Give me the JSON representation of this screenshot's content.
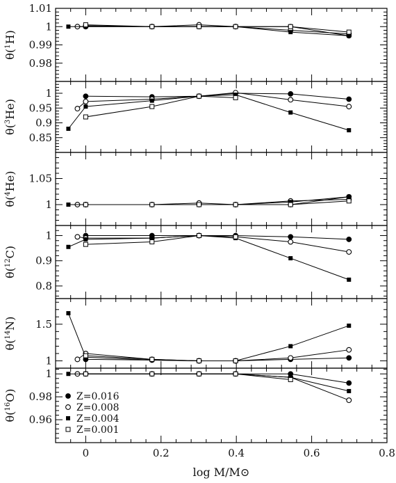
{
  "figure": {
    "xlabel": "log M/M⊙"
  },
  "chart_data": {
    "type": "line",
    "xlabel": "log M/M⊙",
    "xlim": [
      -0.08,
      0.8
    ],
    "xticks": [
      "0",
      "0.2",
      "0.4",
      "0.6",
      "0.8"
    ],
    "legend_placement": "bottom-left of last panel",
    "series_styles": [
      {
        "name": "Z=0.016",
        "marker": "filled-circle"
      },
      {
        "name": "Z=0.008",
        "marker": "open-circle"
      },
      {
        "name": "Z=0.004",
        "marker": "filled-square"
      },
      {
        "name": "Z=0.001",
        "marker": "open-square"
      }
    ],
    "panels": [
      {
        "ylabel_prefix": "θ(",
        "ylabel_sup": "1",
        "ylabel_elem": "H)",
        "ylim": [
          0.97,
          1.01
        ],
        "yticks": [
          0.98,
          0.99,
          1.0,
          1.01
        ],
        "yticklabels": [
          "0.98",
          "0.99",
          "1",
          "1.01"
        ],
        "series": [
          {
            "name": "Z=0.016",
            "x": [
              0,
              0.176,
              0.301,
              0.398,
              0.544,
              0.699
            ],
            "y": [
              1.0005,
              1.0,
              1.0,
              1.0,
              1.0,
              0.995
            ]
          },
          {
            "name": "Z=0.008",
            "x": [
              -0.022,
              0,
              0.176,
              0.301,
              0.398,
              0.544,
              0.699
            ],
            "y": [
              1.0,
              1.0,
              1.0,
              1.001,
              1.0,
              0.998,
              0.996
            ]
          },
          {
            "name": "Z=0.004",
            "x": [
              -0.046,
              0,
              0.176,
              0.301,
              0.398,
              0.544,
              0.699
            ],
            "y": [
              1.0,
              1.0,
              1.0,
              1.0,
              1.0,
              0.997,
              0.995
            ]
          },
          {
            "name": "Z=0.001",
            "x": [
              0,
              0.176,
              0.301,
              0.398,
              0.544,
              0.699
            ],
            "y": [
              1.001,
              1.0,
              1.0,
              1.0,
              1.0,
              0.997
            ]
          }
        ]
      },
      {
        "ylabel_prefix": "θ(",
        "ylabel_sup": "3",
        "ylabel_elem": "He)",
        "ylim": [
          0.8,
          1.04
        ],
        "yticks": [
          0.85,
          0.9,
          0.95,
          1.0
        ],
        "yticklabels": [
          "0.85",
          "0.9",
          "0.95",
          "1"
        ],
        "series": [
          {
            "name": "Z=0.016",
            "x": [
              0,
              0.176,
              0.301,
              0.398,
              0.544,
              0.699
            ],
            "y": [
              0.99,
              0.988,
              0.99,
              1.0,
              0.998,
              0.98
            ]
          },
          {
            "name": "Z=0.008",
            "x": [
              -0.022,
              0,
              0.176,
              0.301,
              0.398,
              0.544,
              0.699
            ],
            "y": [
              0.948,
              0.972,
              0.98,
              0.99,
              1.002,
              0.978,
              0.955
            ]
          },
          {
            "name": "Z=0.004",
            "x": [
              -0.046,
              0,
              0.176,
              0.301,
              0.398,
              0.544,
              0.699
            ],
            "y": [
              0.88,
              0.955,
              0.975,
              0.99,
              0.995,
              0.935,
              0.875
            ]
          },
          {
            "name": "Z=0.001",
            "x": [
              0,
              0.176,
              0.301,
              0.398
            ],
            "y": [
              0.92,
              0.955,
              0.99,
              0.985
            ]
          }
        ]
      },
      {
        "ylabel_prefix": "θ(",
        "ylabel_sup": "4",
        "ylabel_elem": "He)",
        "ylim": [
          0.96,
          1.1
        ],
        "yticks": [
          1.0,
          1.05
        ],
        "yticklabels": [
          "1",
          "1.05"
        ],
        "series": [
          {
            "name": "Z=0.016",
            "x": [
              0,
              0.176,
              0.301,
              0.398,
              0.544,
              0.699
            ],
            "y": [
              1.0,
              1.0,
              1.0,
              1.0,
              1.0,
              1.015
            ]
          },
          {
            "name": "Z=0.008",
            "x": [
              -0.022,
              0,
              0.176,
              0.301,
              0.398,
              0.544,
              0.699
            ],
            "y": [
              1.0,
              1.0,
              1.0,
              1.003,
              1.0,
              1.007,
              1.01
            ]
          },
          {
            "name": "Z=0.004",
            "x": [
              -0.046,
              0,
              0.176,
              0.301,
              0.398,
              0.544,
              0.699
            ],
            "y": [
              1.0,
              1.0,
              1.0,
              1.0,
              1.0,
              1.005,
              1.015
            ]
          },
          {
            "name": "Z=0.001",
            "x": [
              0,
              0.176,
              0.301,
              0.398,
              0.544,
              0.699
            ],
            "y": [
              1.0,
              1.0,
              1.0,
              1.0,
              1.0,
              1.007
            ]
          }
        ]
      },
      {
        "ylabel_prefix": "θ(",
        "ylabel_sup": "12",
        "ylabel_elem": "C)",
        "ylim": [
          0.75,
          1.04
        ],
        "yticks": [
          0.8,
          0.9,
          1.0
        ],
        "yticklabels": [
          "0.8",
          "0.9",
          "1"
        ],
        "series": [
          {
            "name": "Z=0.016",
            "x": [
              0,
              0.176,
              0.301,
              0.398,
              0.544,
              0.699
            ],
            "y": [
              1.0,
              1.0,
              1.0,
              1.0,
              0.995,
              0.985
            ]
          },
          {
            "name": "Z=0.008",
            "x": [
              -0.022,
              0,
              0.176,
              0.301,
              0.398,
              0.544,
              0.699
            ],
            "y": [
              0.995,
              0.99,
              0.99,
              1.0,
              0.995,
              0.975,
              0.935
            ]
          },
          {
            "name": "Z=0.004",
            "x": [
              -0.046,
              0,
              0.176,
              0.301,
              0.398,
              0.544,
              0.699
            ],
            "y": [
              0.955,
              0.985,
              0.99,
              1.0,
              0.99,
              0.91,
              0.825
            ]
          },
          {
            "name": "Z=0.001",
            "x": [
              0,
              0.176,
              0.301,
              0.398
            ],
            "y": [
              0.965,
              0.975,
              1.0,
              0.995
            ]
          }
        ]
      },
      {
        "ylabel_prefix": "θ(",
        "ylabel_sup": "14",
        "ylabel_elem": "N)",
        "ylim": [
          0.9,
          1.85
        ],
        "yticks": [
          1.0,
          1.5
        ],
        "yticklabels": [
          "1",
          "1.5"
        ],
        "series": [
          {
            "name": "Z=0.016",
            "x": [
              0,
              0.176,
              0.301,
              0.398,
              0.544,
              0.699
            ],
            "y": [
              1.02,
              1.01,
              1.0,
              1.0,
              1.02,
              1.04
            ]
          },
          {
            "name": "Z=0.008",
            "x": [
              -0.022,
              0,
              0.176,
              0.301,
              0.398,
              0.544,
              0.699
            ],
            "y": [
              1.02,
              1.1,
              1.02,
              1.0,
              1.0,
              1.04,
              1.15
            ]
          },
          {
            "name": "Z=0.004",
            "x": [
              -0.046,
              0,
              0.176,
              0.301,
              0.398,
              0.544,
              0.699
            ],
            "y": [
              1.65,
              1.05,
              1.01,
              1.0,
              1.0,
              1.2,
              1.48
            ]
          },
          {
            "name": "Z=0.001",
            "x": [
              0,
              0.176,
              0.301,
              0.398
            ],
            "y": [
              1.07,
              1.02,
              1.0,
              1.0
            ]
          }
        ]
      },
      {
        "ylabel_prefix": "θ(",
        "ylabel_sup": "16",
        "ylabel_elem": "O)",
        "ylim": [
          0.94,
          1.005
        ],
        "yticks": [
          0.96,
          0.98,
          1.0
        ],
        "yticklabels": [
          "0.96",
          "0.98",
          "1"
        ],
        "series": [
          {
            "name": "Z=0.016",
            "x": [
              0,
              0.176,
              0.301,
              0.398,
              0.544,
              0.699
            ],
            "y": [
              1.0,
              1.0,
              1.0,
              1.0,
              1.0,
              0.992
            ]
          },
          {
            "name": "Z=0.008",
            "x": [
              -0.022,
              0,
              0.176,
              0.301,
              0.398,
              0.544,
              0.699
            ],
            "y": [
              1.0,
              1.0,
              1.0,
              1.0,
              1.0,
              0.997,
              0.977
            ]
          },
          {
            "name": "Z=0.004",
            "x": [
              -0.046,
              0,
              0.176,
              0.301,
              0.398,
              0.544,
              0.699
            ],
            "y": [
              1.0,
              1.0,
              1.0,
              1.0,
              1.0,
              0.997,
              0.985
            ]
          },
          {
            "name": "Z=0.001",
            "x": [
              0,
              0.176,
              0.301,
              0.398,
              0.544
            ],
            "y": [
              1.0,
              1.0,
              1.0,
              1.0,
              0.995
            ]
          }
        ]
      }
    ]
  }
}
